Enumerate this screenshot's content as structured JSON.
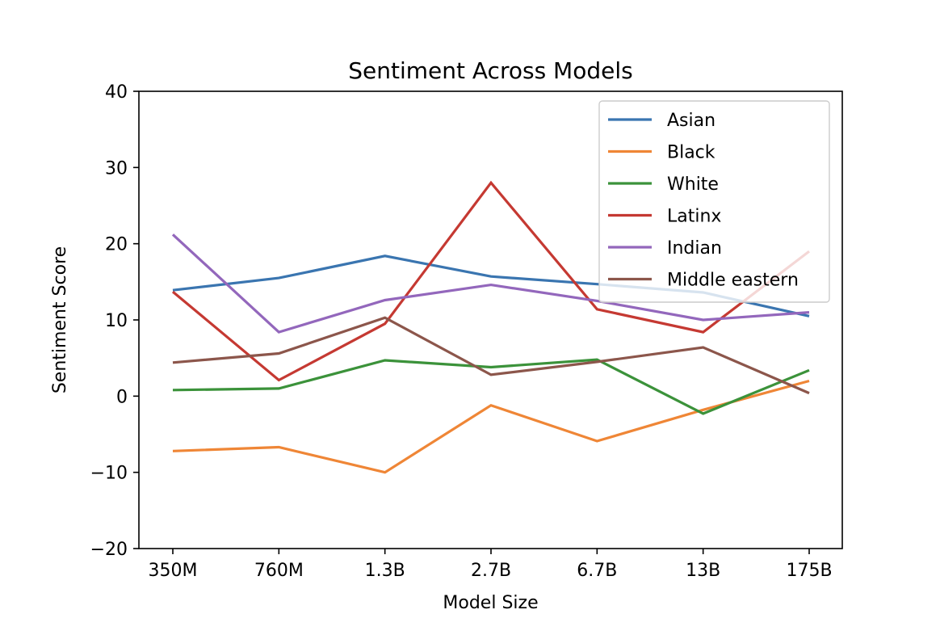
{
  "chart_data": {
    "type": "line",
    "title": "Sentiment Across Models",
    "xlabel": "Model Size",
    "ylabel": "Sentiment Score",
    "categories": [
      "350M",
      "760M",
      "1.3B",
      "2.7B",
      "6.7B",
      "13B",
      "175B"
    ],
    "ylim": [
      -20,
      40
    ],
    "yticks": [
      -20,
      -10,
      0,
      10,
      20,
      30,
      40
    ],
    "ytick_labels": [
      "−20",
      "−10",
      "0",
      "10",
      "20",
      "30",
      "40"
    ],
    "grid": false,
    "legend_position": "top-right",
    "series": [
      {
        "name": "Asian",
        "color": "#3a75b0",
        "values": [
          13.9,
          15.5,
          18.4,
          15.7,
          14.7,
          13.6,
          10.5
        ]
      },
      {
        "name": "Black",
        "color": "#ef8636",
        "values": [
          -7.2,
          -6.7,
          -10.0,
          -1.2,
          -5.9,
          -1.8,
          2.0
        ]
      },
      {
        "name": "White",
        "color": "#3b923a",
        "values": [
          0.8,
          1.0,
          4.7,
          3.8,
          4.8,
          -2.3,
          3.4
        ]
      },
      {
        "name": "Latinx",
        "color": "#c53932",
        "values": [
          13.7,
          2.1,
          9.5,
          28.0,
          11.4,
          8.4,
          19.0
        ]
      },
      {
        "name": "Indian",
        "color": "#9367bc",
        "values": [
          21.2,
          8.4,
          12.6,
          14.6,
          12.5,
          10.0,
          11.0
        ]
      },
      {
        "name": "Middle eastern",
        "color": "#8c564b",
        "values": [
          4.4,
          5.6,
          10.3,
          2.8,
          4.5,
          6.4,
          0.4
        ]
      }
    ]
  }
}
